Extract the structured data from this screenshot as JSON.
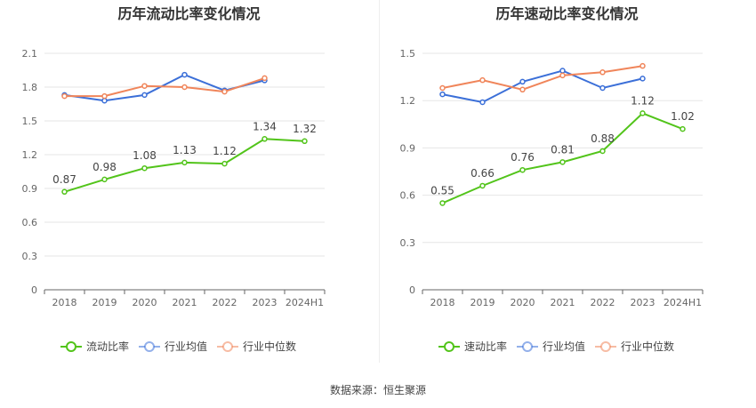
{
  "footer": {
    "source": "数据来源：恒生聚源"
  },
  "chart_data": [
    {
      "type": "line",
      "title": "历年流动比率变化情况",
      "categories": [
        "2018",
        "2019",
        "2020",
        "2021",
        "2022",
        "2023",
        "2024H1"
      ],
      "ylim": [
        0,
        2.1
      ],
      "yticks": [
        0,
        0.3,
        0.6,
        0.9,
        1.2,
        1.5,
        1.8,
        2.1
      ],
      "ytick_labels": [
        "0",
        "0.3",
        "0.6",
        "0.9",
        "1.2",
        "1.5",
        "1.8",
        "2.1"
      ],
      "grid": true,
      "legend_position": "bottom",
      "series": [
        {
          "name": "流动比率",
          "color": "#52c41a",
          "values": [
            0.87,
            0.98,
            1.08,
            1.13,
            1.12,
            1.34,
            1.32
          ],
          "labels": [
            "0.87",
            "0.98",
            "1.08",
            "1.13",
            "1.12",
            "1.34",
            "1.32"
          ]
        },
        {
          "name": "行业均值",
          "color": "#3b6fd8",
          "values": [
            1.73,
            1.68,
            1.73,
            1.91,
            1.77,
            1.86,
            null
          ]
        },
        {
          "name": "行业中位数",
          "color": "#f0855a",
          "values": [
            1.72,
            1.72,
            1.81,
            1.8,
            1.76,
            1.88,
            null
          ]
        }
      ]
    },
    {
      "type": "line",
      "title": "历年速动比率变化情况",
      "categories": [
        "2018",
        "2019",
        "2020",
        "2021",
        "2022",
        "2023",
        "2024H1"
      ],
      "ylim": [
        0,
        1.5
      ],
      "yticks": [
        0,
        0.3,
        0.6,
        0.9,
        1.2,
        1.5
      ],
      "ytick_labels": [
        "0",
        "0.3",
        "0.6",
        "0.9",
        "1.2",
        "1.5"
      ],
      "grid": true,
      "legend_position": "bottom",
      "series": [
        {
          "name": "速动比率",
          "color": "#52c41a",
          "values": [
            0.55,
            0.66,
            0.76,
            0.81,
            0.88,
            1.12,
            1.02
          ],
          "labels": [
            "0.55",
            "0.66",
            "0.76",
            "0.81",
            "0.88",
            "1.12",
            "1.02"
          ]
        },
        {
          "name": "行业均值",
          "color": "#3b6fd8",
          "values": [
            1.24,
            1.19,
            1.32,
            1.39,
            1.28,
            1.34,
            null
          ]
        },
        {
          "name": "行业中位数",
          "color": "#f0855a",
          "values": [
            1.28,
            1.33,
            1.27,
            1.36,
            1.38,
            1.42,
            null
          ]
        }
      ]
    }
  ]
}
